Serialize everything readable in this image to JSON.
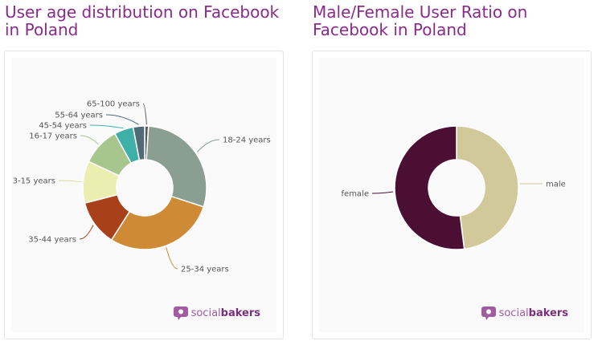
{
  "colors": {
    "title": "#8a2a8c",
    "leader": "#8a8a8a"
  },
  "chart_data": [
    {
      "type": "pie",
      "donut": true,
      "title": "User age distribution on Facebook in Poland",
      "slices": [
        {
          "label": "65-100 years",
          "value": 1,
          "color": "#5a5a5a"
        },
        {
          "label": "18-24 years",
          "value": 29,
          "color": "#8a9e91"
        },
        {
          "label": "25-34 years",
          "value": 29,
          "color": "#cf8a35"
        },
        {
          "label": "35-44 years",
          "value": 12,
          "color": "#a8401a"
        },
        {
          "label": "3-15 years",
          "value": 11,
          "color": "#ebeeb0"
        },
        {
          "label": "16-17 years",
          "value": 10,
          "color": "#a6c68e"
        },
        {
          "label": "45-54 years",
          "value": 5,
          "color": "#3fb0a8"
        },
        {
          "label": "55-64 years",
          "value": 3,
          "color": "#4f6b78"
        }
      ]
    },
    {
      "type": "pie",
      "donut": true,
      "title": "Male/Female User Ratio on Facebook in Poland",
      "slices": [
        {
          "label": "male",
          "value": 48,
          "color": "#d2c99a"
        },
        {
          "label": "female",
          "value": 52,
          "color": "#4a0f33"
        }
      ]
    }
  ],
  "branding": {
    "prefix": "social",
    "suffix": "bakers"
  }
}
